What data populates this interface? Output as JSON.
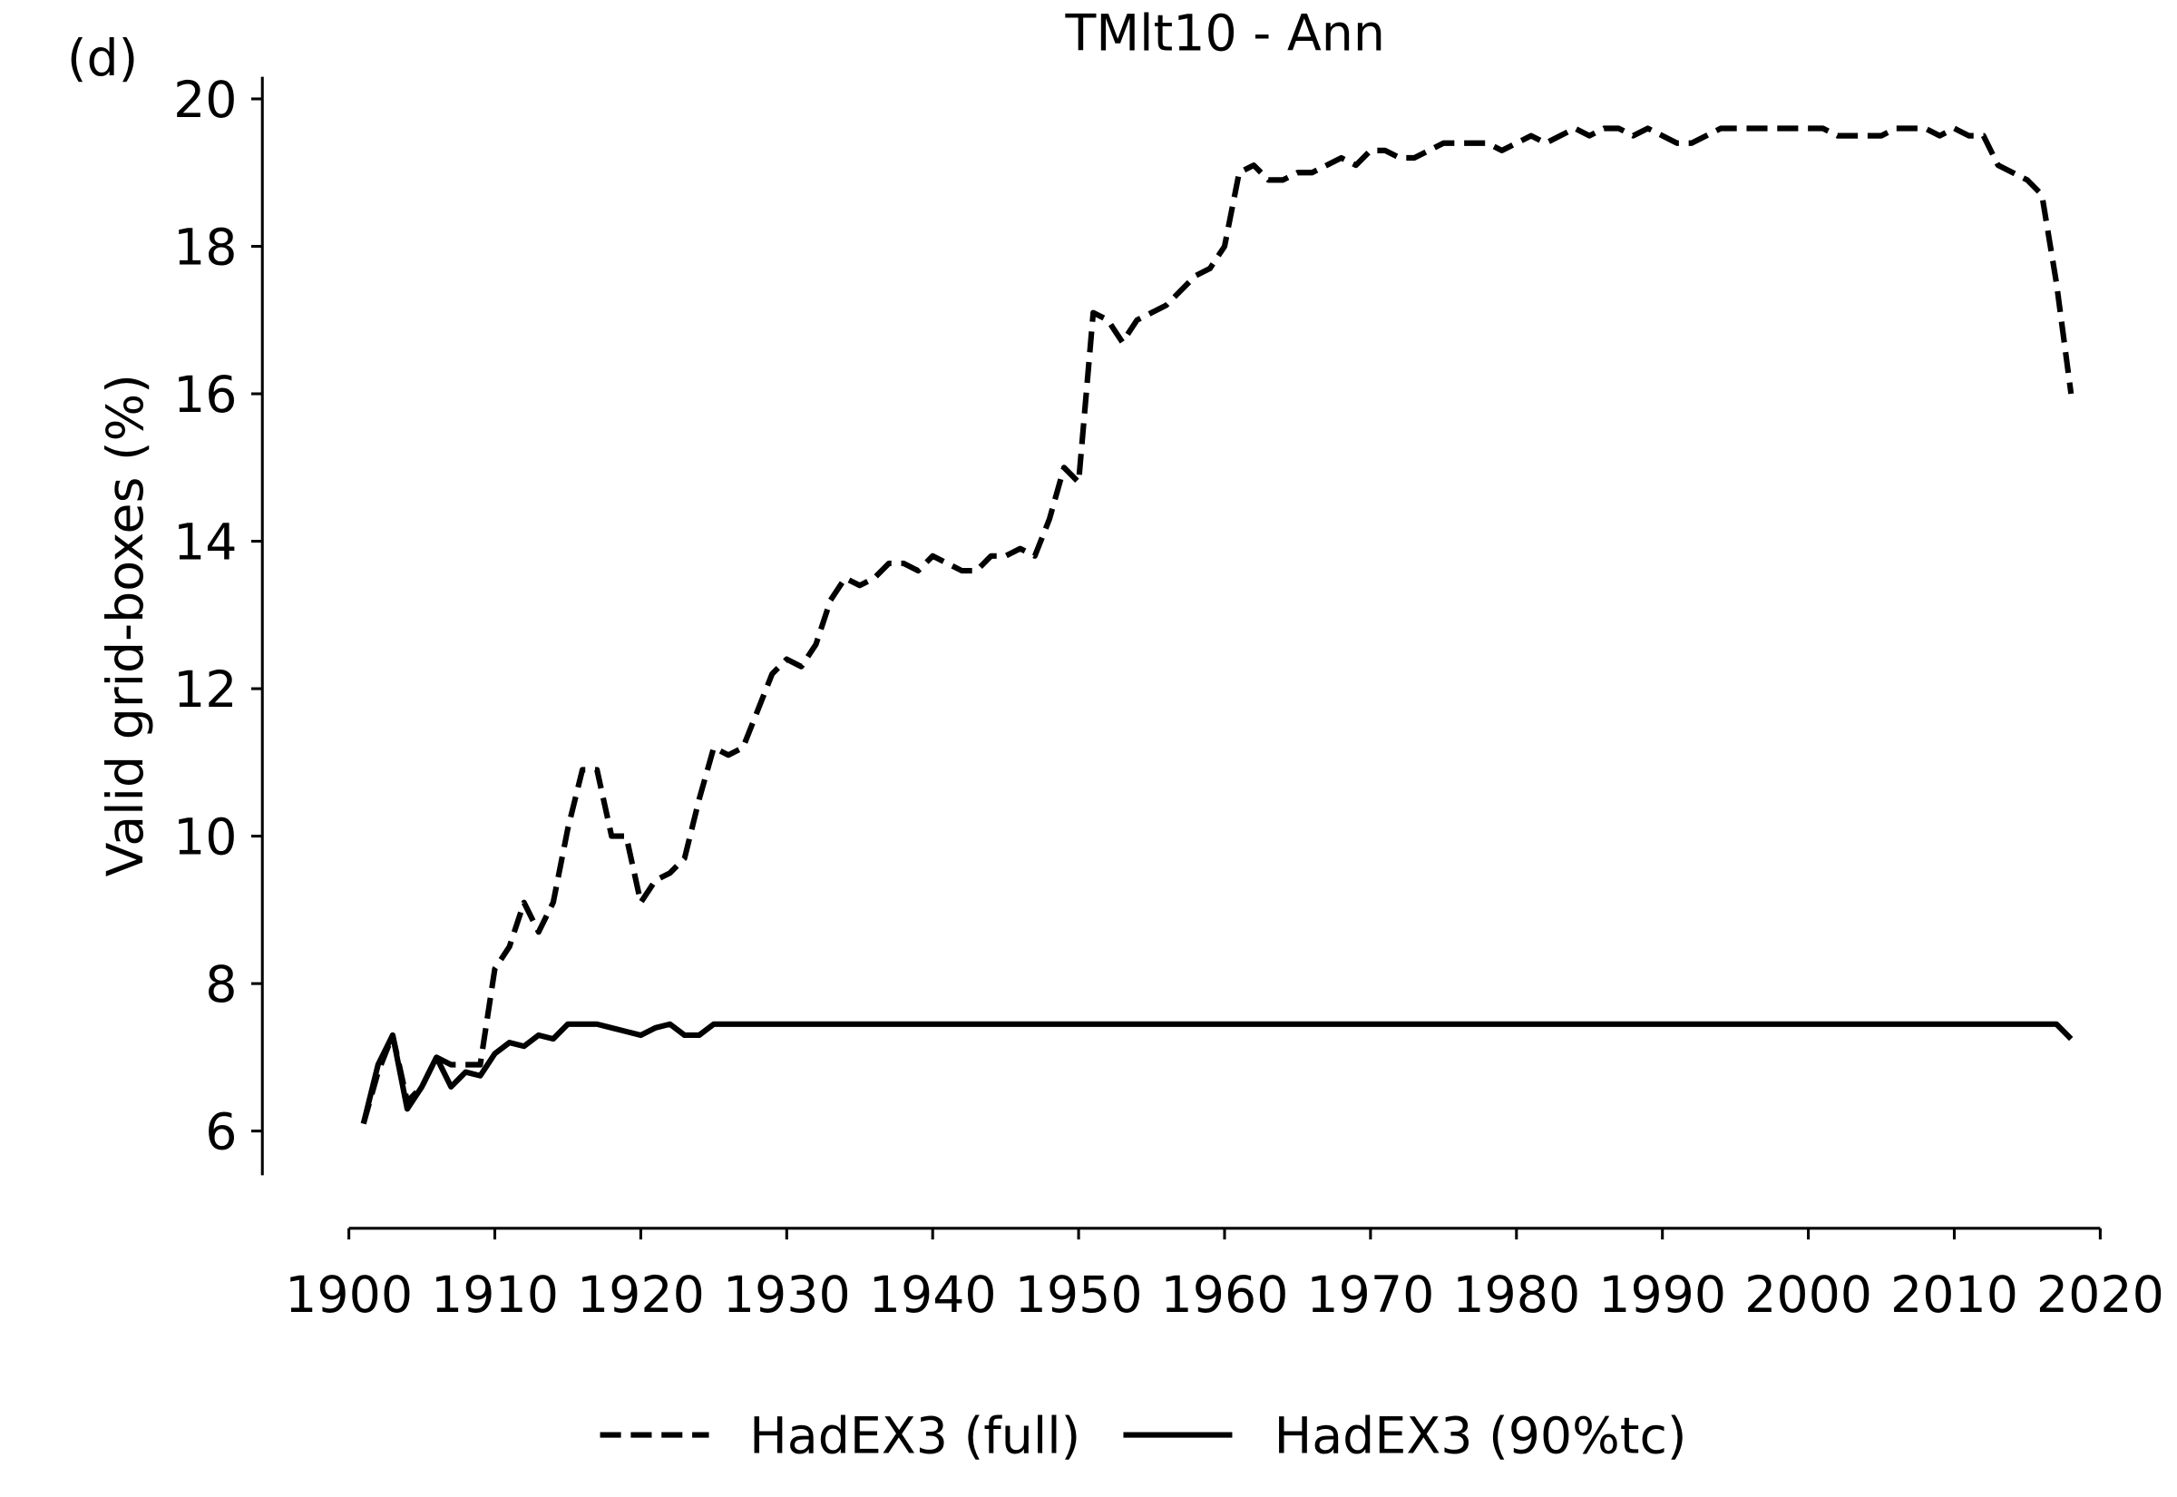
{
  "chart_data": {
    "type": "line",
    "title": "TMlt10 - Ann",
    "panel_label": "(d)",
    "y_label": "Valid grid-boxes (%)",
    "x": [
      1901,
      1902,
      1903,
      1904,
      1905,
      1906,
      1907,
      1908,
      1909,
      1910,
      1911,
      1912,
      1913,
      1914,
      1915,
      1916,
      1917,
      1918,
      1919,
      1920,
      1921,
      1922,
      1923,
      1924,
      1925,
      1926,
      1927,
      1928,
      1929,
      1930,
      1931,
      1932,
      1933,
      1934,
      1935,
      1936,
      1937,
      1938,
      1939,
      1940,
      1941,
      1942,
      1943,
      1944,
      1945,
      1946,
      1947,
      1948,
      1949,
      1950,
      1951,
      1952,
      1953,
      1954,
      1955,
      1956,
      1957,
      1958,
      1959,
      1960,
      1961,
      1962,
      1963,
      1964,
      1965,
      1966,
      1967,
      1968,
      1969,
      1970,
      1971,
      1972,
      1973,
      1974,
      1975,
      1976,
      1977,
      1978,
      1979,
      1980,
      1981,
      1982,
      1983,
      1984,
      1985,
      1986,
      1987,
      1988,
      1989,
      1990,
      1991,
      1992,
      1993,
      1994,
      1995,
      1996,
      1997,
      1998,
      1999,
      2000,
      2001,
      2002,
      2003,
      2004,
      2005,
      2006,
      2007,
      2008,
      2009,
      2010,
      2011,
      2012,
      2013,
      2014,
      2015,
      2016,
      2017,
      2018
    ],
    "series": [
      {
        "name": "HadEX3 (full)",
        "color": "#000000",
        "linestyle": "dashed",
        "values": [
          6.1,
          6.8,
          7.3,
          6.4,
          6.6,
          7.0,
          6.9,
          6.9,
          6.9,
          8.2,
          8.5,
          9.1,
          8.7,
          9.1,
          10.1,
          10.9,
          10.9,
          10.0,
          10.0,
          9.1,
          9.4,
          9.5,
          9.7,
          10.5,
          11.2,
          11.1,
          11.2,
          11.7,
          12.2,
          12.4,
          12.3,
          12.6,
          13.2,
          13.5,
          13.4,
          13.5,
          13.7,
          13.7,
          13.6,
          13.8,
          13.7,
          13.6,
          13.6,
          13.8,
          13.8,
          13.9,
          13.8,
          14.3,
          15.0,
          14.8,
          17.1,
          17.0,
          16.7,
          17.0,
          17.1,
          17.2,
          17.4,
          17.6,
          17.7,
          18.0,
          19.0,
          19.1,
          18.9,
          18.9,
          19.0,
          19.0,
          19.1,
          19.2,
          19.1,
          19.3,
          19.3,
          19.2,
          19.2,
          19.3,
          19.4,
          19.4,
          19.4,
          19.4,
          19.3,
          19.4,
          19.5,
          19.4,
          19.5,
          19.6,
          19.5,
          19.6,
          19.6,
          19.5,
          19.6,
          19.5,
          19.4,
          19.4,
          19.5,
          19.6,
          19.6,
          19.6,
          19.6,
          19.6,
          19.6,
          19.6,
          19.6,
          19.5,
          19.5,
          19.5,
          19.5,
          19.6,
          19.6,
          19.6,
          19.5,
          19.6,
          19.5,
          19.5,
          19.1,
          19.0,
          18.9,
          18.7,
          17.5,
          16.0
        ]
      },
      {
        "name": "HadEX3 (90%tc)",
        "color": "#000000",
        "linestyle": "solid",
        "values": [
          6.1,
          6.9,
          7.3,
          6.3,
          6.6,
          7.0,
          6.6,
          6.8,
          6.75,
          7.05,
          7.2,
          7.15,
          7.3,
          7.25,
          7.45,
          7.45,
          7.45,
          7.4,
          7.35,
          7.3,
          7.4,
          7.45,
          7.3,
          7.3,
          7.45,
          7.45,
          7.45,
          7.45,
          7.45,
          7.45,
          7.45,
          7.45,
          7.45,
          7.45,
          7.45,
          7.45,
          7.45,
          7.45,
          7.45,
          7.45,
          7.45,
          7.45,
          7.45,
          7.45,
          7.45,
          7.45,
          7.45,
          7.45,
          7.45,
          7.45,
          7.45,
          7.45,
          7.45,
          7.45,
          7.45,
          7.45,
          7.45,
          7.45,
          7.45,
          7.45,
          7.45,
          7.45,
          7.45,
          7.45,
          7.45,
          7.45,
          7.45,
          7.45,
          7.45,
          7.45,
          7.45,
          7.45,
          7.45,
          7.45,
          7.45,
          7.45,
          7.45,
          7.45,
          7.45,
          7.45,
          7.45,
          7.45,
          7.45,
          7.45,
          7.45,
          7.45,
          7.45,
          7.45,
          7.45,
          7.45,
          7.45,
          7.45,
          7.45,
          7.45,
          7.45,
          7.45,
          7.45,
          7.45,
          7.45,
          7.45,
          7.45,
          7.45,
          7.45,
          7.45,
          7.45,
          7.45,
          7.45,
          7.45,
          7.45,
          7.45,
          7.45,
          7.45,
          7.45,
          7.45,
          7.45,
          7.45,
          7.45,
          7.25
        ]
      }
    ],
    "xlim": [
      1900,
      2020
    ],
    "xticks": [
      1900,
      1910,
      1920,
      1930,
      1940,
      1950,
      1960,
      1970,
      1980,
      1990,
      2000,
      2010,
      2020
    ],
    "ylim": [
      5.4,
      20.3
    ],
    "yticks": [
      6,
      8,
      10,
      12,
      14,
      16,
      18,
      20
    ],
    "grid": false,
    "legend": "bottom"
  }
}
